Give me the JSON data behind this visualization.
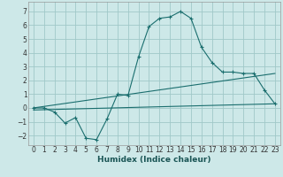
{
  "xlabel": "Humidex (Indice chaleur)",
  "background_color": "#cde8e8",
  "grid_color": "#a0c8c8",
  "line_color": "#1a6e6e",
  "xlim": [
    -0.5,
    23.5
  ],
  "ylim": [
    -2.7,
    7.7
  ],
  "xticks": [
    0,
    1,
    2,
    3,
    4,
    5,
    6,
    7,
    8,
    9,
    10,
    11,
    12,
    13,
    14,
    15,
    16,
    17,
    18,
    19,
    20,
    21,
    22,
    23
  ],
  "yticks": [
    -2,
    -1,
    0,
    1,
    2,
    3,
    4,
    5,
    6,
    7
  ],
  "main_x": [
    0,
    1,
    2,
    3,
    4,
    5,
    6,
    7,
    8,
    9,
    10,
    11,
    12,
    13,
    14,
    15,
    16,
    17,
    18,
    19,
    20,
    21,
    22,
    23
  ],
  "main_y": [
    0.0,
    0.0,
    -0.3,
    -1.1,
    -0.7,
    -2.2,
    -2.3,
    -0.8,
    1.0,
    0.9,
    3.7,
    5.9,
    6.5,
    6.6,
    7.0,
    6.5,
    4.4,
    3.3,
    2.6,
    2.6,
    2.5,
    2.5,
    1.3,
    0.3
  ],
  "line1_x": [
    0,
    23
  ],
  "line1_y": [
    0.0,
    2.5
  ],
  "line2_x": [
    0,
    23
  ],
  "line2_y": [
    -0.15,
    0.3
  ],
  "tick_fontsize": 5.5,
  "xlabel_fontsize": 6.5
}
